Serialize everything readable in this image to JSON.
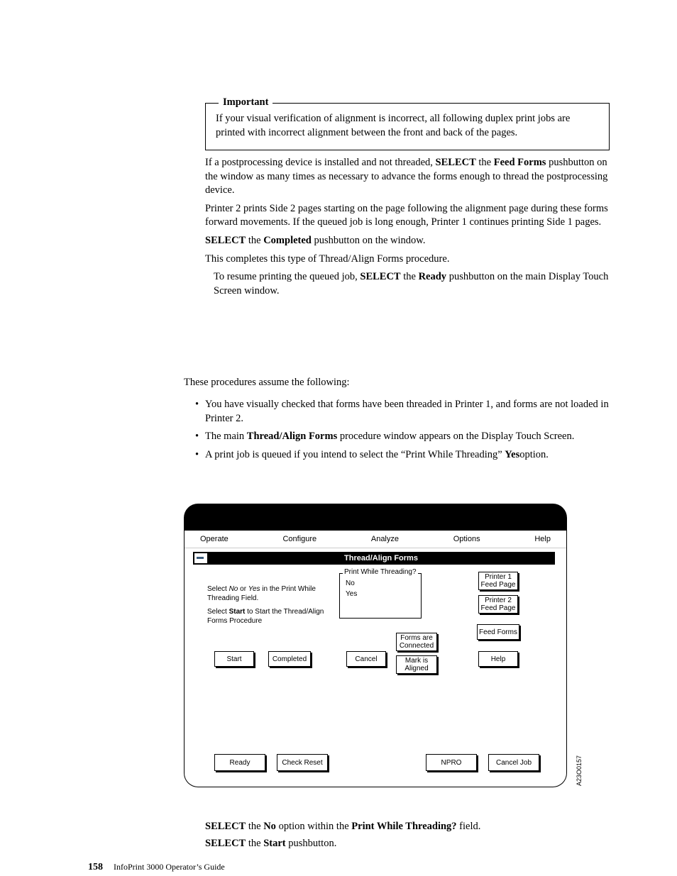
{
  "important": {
    "label": "Important",
    "text": "If your visual verification of alignment is incorrect, all following duplex print jobs are printed with incorrect alignment between the front and back of the pages."
  },
  "paragraphs": {
    "p1_pre": "If a postprocessing device is installed and not threaded, ",
    "p1_b1": "SELECT",
    "p1_mid1": " the ",
    "p1_b2": "Feed Forms",
    "p1_post": " pushbutton on the window as many times as necessary to advance the forms enough to thread the postprocessing device.",
    "p2": "Printer 2 prints Side 2 pages starting on the page following the alignment page during these forms forward movements. If the queued job is long enough, Printer 1 continues printing Side 1 pages.",
    "p3_b1": "SELECT",
    "p3_mid": " the ",
    "p3_b2": "Completed",
    "p3_post": " pushbutton on the window.",
    "p4": "This completes this type of Thread/Align Forms procedure.",
    "p5_pre": "To resume printing the queued job, ",
    "p5_b1": "SELECT",
    "p5_mid": " the ",
    "p5_b2": "Ready",
    "p5_post": " pushbutton on the main Display Touch Screen window.",
    "assume": "These procedures assume the following:",
    "b1": "You have visually checked that forms have been threaded in Printer 1, and forms are not loaded in Printer 2.",
    "b2_pre": "The main ",
    "b2_b": "Thread/Align Forms",
    "b2_post": " procedure window appears on the Display Touch Screen.",
    "b3_pre": "A print job is queued if you intend to select the “Print While Threading” ",
    "b3_b": "Yes",
    "b3_post": "option.",
    "after1_b1": "SELECT",
    "after1_mid1": " the ",
    "after1_b2": "No",
    "after1_mid2": " option within the ",
    "after1_b3": "Print While Threading?",
    "after1_post": " field.",
    "after2_b1": "SELECT",
    "after2_mid": " the ",
    "after2_b2": "Start",
    "after2_post": " pushbutton."
  },
  "figure": {
    "menubar": [
      "Operate",
      "Configure",
      "Analyze",
      "Options",
      "Help"
    ],
    "title": "Thread/Align Forms",
    "group_label": "Print While Threading?",
    "options": {
      "no": "No",
      "yes": "Yes"
    },
    "instr1_pre": "Select ",
    "instr1_i1": "No",
    "instr1_mid": " or ",
    "instr1_i2": "Yes",
    "instr1_post": " in the Print While Threading Field.",
    "instr2_pre": "Select ",
    "instr2_b": "Start",
    "instr2_post": " to Start the Thread/Align Forms Procedure",
    "buttons": {
      "start": "Start",
      "completed": "Completed",
      "cancel": "Cancel",
      "forms_connected": "Forms are Connected",
      "mark_aligned": "Mark is Aligned",
      "p1_feed": "Printer 1 Feed Page",
      "p2_feed": "Printer 2 Feed Page",
      "feed_forms": "Feed Forms",
      "help": "Help"
    },
    "footer": {
      "ready": "Ready",
      "check_reset": "Check Reset",
      "npro": "NPRO",
      "cancel_job": "Cancel Job"
    },
    "code": "A23O0157"
  },
  "footer": {
    "page_num": "158",
    "guide": "InfoPrint 3000 Operator’s Guide"
  }
}
